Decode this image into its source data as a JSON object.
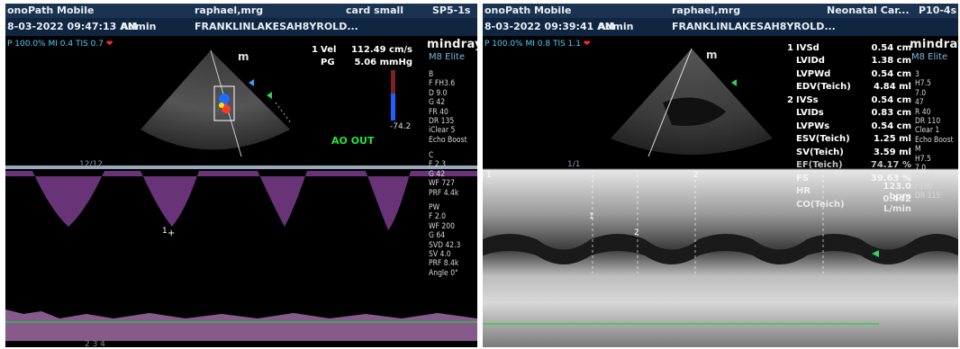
{
  "left": {
    "header": {
      "app": "onoPath Mobile",
      "user": "raphael,mrg",
      "preset": "card small",
      "probe": "SP5-1s",
      "datetime": "8-03-2022 09:47:13 AM",
      "operator": "Admin",
      "patient": "FRANKLINLAKESAH8YROLD..."
    },
    "status": {
      "power": "P 100.0%",
      "mi": "MI 0.4",
      "tis": "TIS 0.7"
    },
    "measurements": [
      {
        "index": "1",
        "label": "Vel",
        "value": "112.49 cm/s"
      },
      {
        "index": "",
        "label": "PG",
        "value": "5.06 mmHg"
      }
    ],
    "brand": "mindray",
    "model": "M8 Elite",
    "annotation": "AO OUT",
    "scale_value": "-74.2",
    "probe_marker": "m",
    "depth_marker": "12/12",
    "params_b": [
      "B",
      "F FH3.6",
      "D 9.0",
      "G 42",
      "FR 40",
      "DR 135",
      "iClear 5",
      "Echo Boost"
    ],
    "params_c": [
      "C",
      "F 2.3",
      "G 42",
      "WF 727",
      "PRF 4.4k"
    ],
    "params_pw": [
      "PW",
      "F 2.0",
      "WF 200",
      "G 64",
      "SVD 42.3",
      "SV 4.0",
      "PRF 8.4k",
      "Angle 0°"
    ],
    "cursor_label": "1",
    "bottom_scale": "2 3 4"
  },
  "right": {
    "header": {
      "app": "onoPath Mobile",
      "user": "raphael,mrg",
      "preset": "Neonatal Car...",
      "probe": "P10-4s",
      "datetime": "8-03-2022 09:39:41 AM",
      "operator": "Admin",
      "patient": "FRANKLINLAKESAH8YROLD..."
    },
    "status": {
      "power": "P 100.0%",
      "mi": "MI 0.8",
      "tis": "TIS 1.1"
    },
    "brand": "mindray",
    "model": "M8 Elite",
    "probe_marker": "m",
    "scale_marker": "1/1",
    "measurements": [
      {
        "index": "1",
        "label": "IVSd",
        "value": "0.54 cm"
      },
      {
        "index": "",
        "label": "LVIDd",
        "value": "1.38 cm"
      },
      {
        "index": "",
        "label": "LVPWd",
        "value": "0.54 cm"
      },
      {
        "index": "",
        "label": "EDV(Teich)",
        "value": "4.84 ml"
      },
      {
        "index": "2",
        "label": "IVSs",
        "value": "0.54 cm"
      },
      {
        "index": "",
        "label": "LVIDs",
        "value": "0.83 cm"
      },
      {
        "index": "",
        "label": "LVPWs",
        "value": "0.54 cm"
      },
      {
        "index": "",
        "label": "ESV(Teich)",
        "value": "1.25 ml"
      },
      {
        "index": "",
        "label": "SV(Teich)",
        "value": "3.59 ml"
      },
      {
        "index": "",
        "label": "EF(Teich)",
        "value": "74.17 %"
      },
      {
        "index": "",
        "label": "FS",
        "value": "39.63 %"
      },
      {
        "index": "",
        "label": "HR",
        "value": "123.0 bpm"
      },
      {
        "index": "",
        "label": "CO(Teich)",
        "value": "0.442 L/min"
      }
    ],
    "params": [
      "3",
      "H7.5",
      "7.0",
      "47",
      "R 40",
      "DR 110",
      "Clear 1",
      "Echo Boost",
      "M",
      "H7.5",
      "7.0",
      "5 100",
      "/ 100",
      "DR 115"
    ],
    "cursor_labels": [
      "1",
      "2"
    ],
    "caliper_labels": [
      "1",
      "2"
    ]
  }
}
